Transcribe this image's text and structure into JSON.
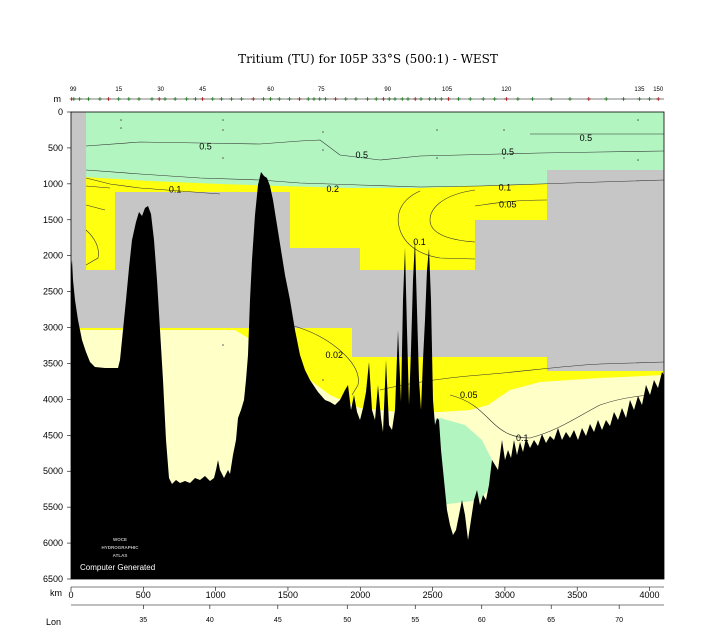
{
  "chart_data": {
    "type": "heatmap",
    "title": "Tritium (TU) for I05P 33°S (500:1) - WEST",
    "depth_unit_label": "m",
    "distance_unit_label": "km",
    "lon_label": "Lon",
    "xlim": [
      0,
      4100
    ],
    "ylim": [
      0,
      6500
    ],
    "y_ticks": [
      0,
      500,
      1000,
      1500,
      2000,
      2500,
      3000,
      3500,
      4000,
      4500,
      5000,
      5500,
      6000,
      6500
    ],
    "x_ticks": [
      0,
      500,
      1000,
      1500,
      2000,
      2500,
      3000,
      3500,
      4000
    ],
    "lon_ticks": [
      {
        "km": 500,
        "label": "35"
      },
      {
        "km": 960,
        "label": "40"
      },
      {
        "km": 1430,
        "label": "45"
      },
      {
        "km": 1910,
        "label": "50"
      },
      {
        "km": 2380,
        "label": "55"
      },
      {
        "km": 2840,
        "label": "60"
      },
      {
        "km": 3320,
        "label": "65"
      },
      {
        "km": 3790,
        "label": "70"
      }
    ],
    "station_labels": [
      {
        "km": 15,
        "label": "99"
      },
      {
        "km": 330,
        "label": "15"
      },
      {
        "km": 620,
        "label": "30"
      },
      {
        "km": 910,
        "label": "45"
      },
      {
        "km": 1380,
        "label": "60"
      },
      {
        "km": 1730,
        "label": "75"
      },
      {
        "km": 2190,
        "label": "90"
      },
      {
        "km": 2600,
        "label": "105"
      },
      {
        "km": 3010,
        "label": "120"
      },
      {
        "km": 3930,
        "label": "135"
      },
      {
        "km": 4060,
        "label": "150"
      }
    ],
    "station_km": [
      5,
      20,
      60,
      120,
      200,
      260,
      330,
      400,
      470,
      560,
      610,
      650,
      720,
      800,
      860,
      910,
      980,
      1040,
      1110,
      1180,
      1260,
      1330,
      1380,
      1440,
      1510,
      1580,
      1640,
      1680,
      1720,
      1760,
      1830,
      1900,
      1970,
      2050,
      2110,
      2160,
      2200,
      2240,
      2290,
      2330,
      2380,
      2420,
      2480,
      2520,
      2560,
      2610,
      2680,
      2760,
      2850,
      2930,
      3010,
      3090,
      3190,
      3320,
      3450,
      3580,
      3700,
      3820,
      3930,
      4000,
      4060
    ],
    "contour_levels": [
      "0.02",
      "0.05",
      "0.1",
      "0.2",
      "0.5"
    ],
    "contour_labels": [
      {
        "km": 930,
        "depth": 480,
        "text": "0.5"
      },
      {
        "km": 2010,
        "depth": 600,
        "text": "0.5"
      },
      {
        "km": 3020,
        "depth": 560,
        "text": "0.5"
      },
      {
        "km": 3560,
        "depth": 360,
        "text": "0.5"
      },
      {
        "km": 1810,
        "depth": 1070,
        "text": "0.2"
      },
      {
        "km": 720,
        "depth": 1080,
        "text": "0.1"
      },
      {
        "km": 3000,
        "depth": 1050,
        "text": "0.1"
      },
      {
        "km": 3020,
        "depth": 1290,
        "text": "0.05"
      },
      {
        "km": 2410,
        "depth": 1810,
        "text": "0.1"
      },
      {
        "km": 1820,
        "depth": 3380,
        "text": "0.02"
      },
      {
        "km": 2750,
        "depth": 3940,
        "text": "0.05"
      },
      {
        "km": 3120,
        "depth": 4540,
        "text": "0.1"
      }
    ],
    "color_bands": [
      {
        "range": ">0.5",
        "color": "#b3f5c0"
      },
      {
        "range": "0.1-0.5",
        "color": "#ffff10"
      },
      {
        "range": "0.02-0.1",
        "color": "#ffffc8"
      },
      {
        "range": "no data",
        "color": "#c6c6c6"
      },
      {
        "range": "bathymetry",
        "color": "#000000"
      }
    ]
  },
  "logo_lines": [
    "WOCE",
    "HYDROGRAPHIC",
    "ATLAS"
  ],
  "credit": "Computer Generated"
}
